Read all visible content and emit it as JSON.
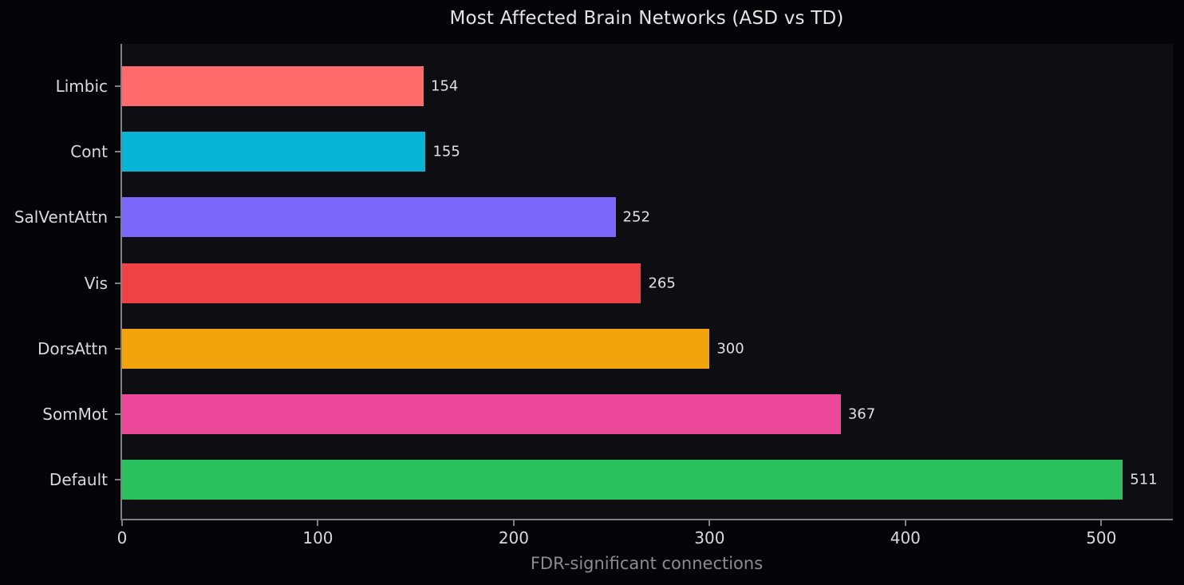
{
  "figure": {
    "background_color": "#050507",
    "axes_background_color": "#0D0D12",
    "spine_color": "#7F7F87",
    "title_color": "#E4E4E4",
    "tick_label_color": "#D9D9D9",
    "value_label_color": "#E0E0E0",
    "xlabel_color": "#8B8B90"
  },
  "chart_data": {
    "type": "bar",
    "orientation": "horizontal",
    "title": "Most Affected Brain Networks (ASD vs TD)",
    "xlabel": "FDR-significant connections",
    "ylabel": "",
    "categories": [
      "Limbic",
      "Cont",
      "SalVentAttn",
      "Vis",
      "DorsAttn",
      "SomMot",
      "Default"
    ],
    "values": [
      154,
      155,
      252,
      265,
      300,
      367,
      511
    ],
    "value_labels": [
      "154",
      "155",
      "252",
      "265",
      "300",
      "367",
      "511"
    ],
    "bar_colors": [
      "#FF6B6B",
      "#08B4D5",
      "#7B68FA",
      "#EE4245",
      "#F3A30C",
      "#EC4899",
      "#2AC05E"
    ],
    "x_ticks": [
      0,
      100,
      200,
      300,
      400,
      500
    ],
    "x_tick_labels": [
      "0",
      "100",
      "200",
      "300",
      "400",
      "500"
    ],
    "xlim": [
      0,
      536.55
    ],
    "grid": false,
    "legend": false
  }
}
